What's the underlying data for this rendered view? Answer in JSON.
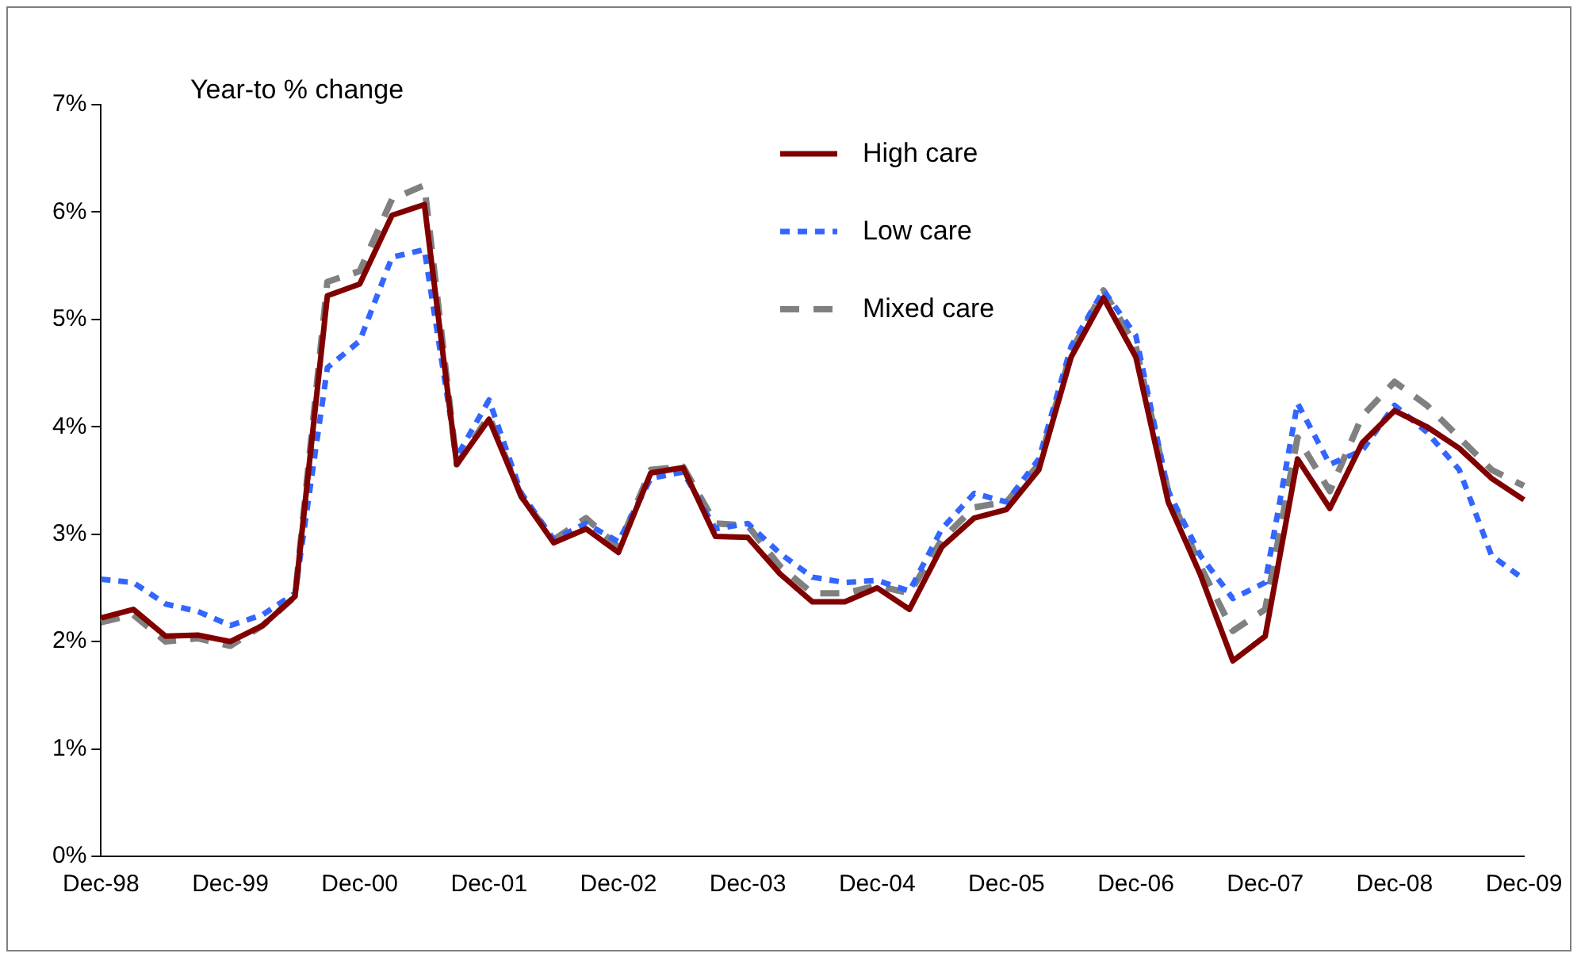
{
  "chart_data": {
    "type": "line",
    "ylabel": "Year-to % change",
    "categories": [
      "Dec-98",
      null,
      null,
      null,
      "Dec-99",
      null,
      null,
      null,
      "Dec-00",
      null,
      null,
      null,
      "Dec-01",
      null,
      null,
      null,
      "Dec-02",
      null,
      null,
      null,
      "Dec-03",
      null,
      null,
      null,
      "Dec-04",
      null,
      null,
      null,
      "Dec-05",
      null,
      null,
      null,
      "Dec-06",
      null,
      null,
      null,
      "Dec-07",
      null,
      null,
      null,
      "Dec-08",
      null,
      null,
      null,
      "Dec-09"
    ],
    "series": [
      {
        "name": "High care",
        "color": "#800000",
        "line_style": "solid",
        "values": [
          2.22,
          2.3,
          2.05,
          2.06,
          2.0,
          2.15,
          2.42,
          5.22,
          5.33,
          5.97,
          6.07,
          3.65,
          4.07,
          3.35,
          2.92,
          3.05,
          2.83,
          3.57,
          3.62,
          2.98,
          2.97,
          2.63,
          2.37,
          2.37,
          2.5,
          2.3,
          2.88,
          3.15,
          3.23,
          3.6,
          4.65,
          5.2,
          4.65,
          3.3,
          2.62,
          1.82,
          2.05,
          3.7,
          3.24,
          3.85,
          4.15,
          4.0,
          3.8,
          3.52,
          3.32
        ]
      },
      {
        "name": "Low care",
        "color": "#3366ff",
        "line_style": "dotted",
        "values": [
          2.58,
          2.55,
          2.35,
          2.28,
          2.15,
          2.25,
          2.45,
          4.55,
          4.8,
          5.58,
          5.65,
          3.72,
          4.25,
          3.38,
          2.95,
          3.1,
          2.93,
          3.52,
          3.58,
          3.05,
          3.1,
          2.82,
          2.6,
          2.55,
          2.57,
          2.47,
          3.05,
          3.38,
          3.3,
          3.7,
          4.75,
          5.27,
          4.85,
          3.4,
          2.8,
          2.4,
          2.55,
          4.22,
          3.65,
          3.78,
          4.2,
          3.95,
          3.6,
          2.8,
          2.58
        ]
      },
      {
        "name": "Mixed care",
        "color": "#808080",
        "line_style": "dashed",
        "values": [
          2.18,
          2.25,
          2.0,
          2.03,
          1.96,
          2.15,
          2.42,
          5.35,
          5.45,
          6.12,
          6.25,
          3.65,
          4.1,
          3.35,
          2.95,
          3.15,
          2.88,
          3.6,
          3.63,
          3.1,
          3.08,
          2.7,
          2.45,
          2.45,
          2.52,
          2.45,
          2.95,
          3.25,
          3.3,
          3.65,
          4.7,
          5.27,
          4.75,
          3.4,
          2.7,
          2.1,
          2.3,
          3.9,
          3.4,
          4.1,
          4.42,
          4.2,
          3.9,
          3.6,
          3.45
        ]
      }
    ],
    "ylim": [
      0,
      7
    ],
    "yticks": [
      {
        "value": 0,
        "label": "0%"
      },
      {
        "value": 1,
        "label": "1%"
      },
      {
        "value": 2,
        "label": "2%"
      },
      {
        "value": 3,
        "label": "3%"
      },
      {
        "value": 4,
        "label": "4%"
      },
      {
        "value": 5,
        "label": "5%"
      },
      {
        "value": 6,
        "label": "6%"
      },
      {
        "value": 7,
        "label": "7%"
      }
    ],
    "legend": "top",
    "marker": "none"
  }
}
